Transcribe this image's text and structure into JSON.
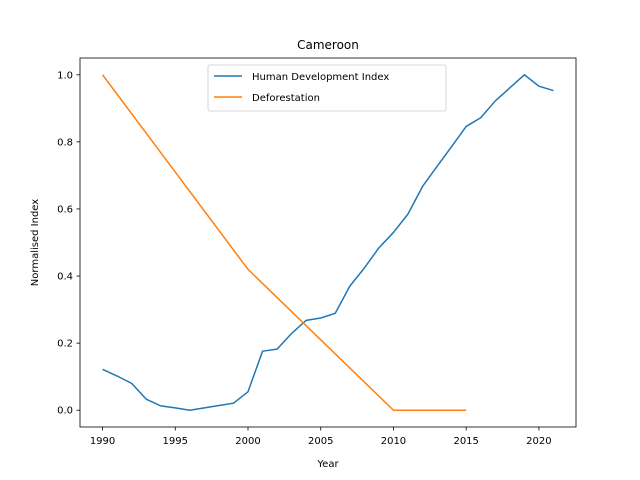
{
  "chart_data": {
    "type": "line",
    "title": "Cameroon",
    "xlabel": "Year",
    "ylabel": "Normalised Index",
    "xlim": [
      1988.45,
      2022.55
    ],
    "ylim": [
      -0.05,
      1.05
    ],
    "xticks": [
      1990,
      1995,
      2000,
      2005,
      2010,
      2015,
      2020
    ],
    "yticks": [
      0.0,
      0.2,
      0.4,
      0.6,
      0.8,
      1.0
    ],
    "grid": false,
    "legend_position": "top-center",
    "series": [
      {
        "name": "Human Development Index",
        "color": "#1f77b4",
        "x": [
          1990,
          1991,
          1992,
          1993,
          1994,
          1995,
          1996,
          1997,
          1998,
          1999,
          2000,
          2001,
          2002,
          2003,
          2004,
          2005,
          2006,
          2007,
          2008,
          2009,
          2010,
          2011,
          2012,
          2013,
          2014,
          2015,
          2016,
          2017,
          2018,
          2019,
          2020,
          2021
        ],
        "y": [
          0.122,
          0.102,
          0.08,
          0.033,
          0.013,
          0.007,
          0.0,
          0.007,
          0.014,
          0.021,
          0.055,
          0.176,
          0.182,
          0.229,
          0.268,
          0.275,
          0.289,
          0.37,
          0.424,
          0.484,
          0.53,
          0.585,
          0.667,
          0.727,
          0.786,
          0.846,
          0.872,
          0.922,
          0.961,
          1.0,
          0.966,
          0.953
        ]
      },
      {
        "name": "Deforestation",
        "color": "#ff7f0e",
        "x": [
          1990,
          2000,
          2010,
          2015
        ],
        "y": [
          1.0,
          0.42,
          0.0,
          0.0
        ]
      }
    ]
  }
}
